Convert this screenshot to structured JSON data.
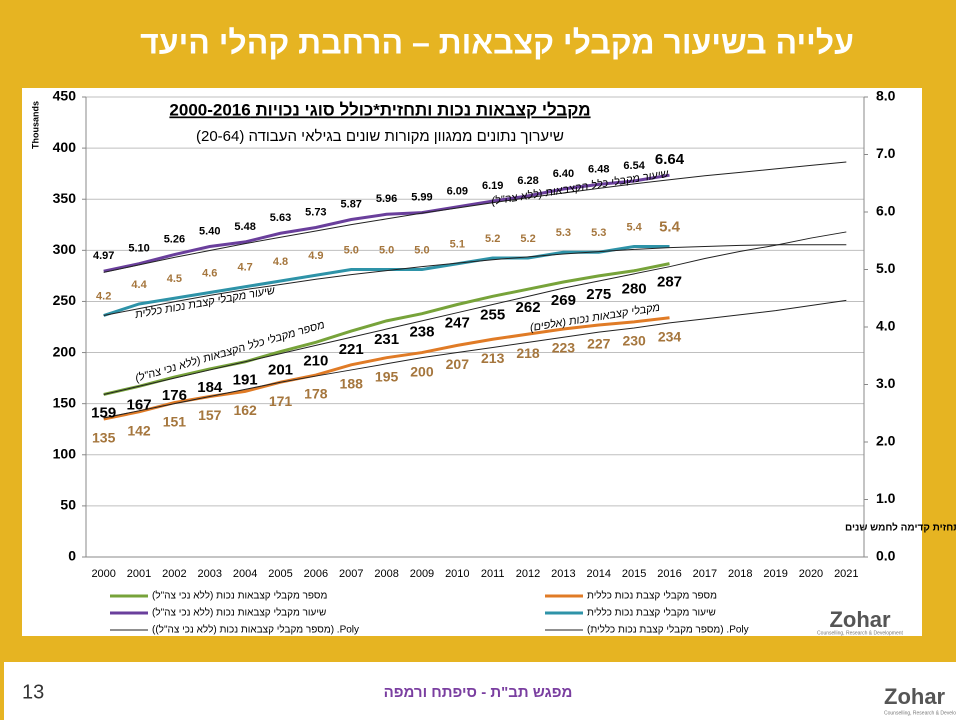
{
  "slide": {
    "title": "עלייה בשיעור מקבלי קצבאות – הרחבת קהלי היעד",
    "page_number": "13",
    "footer": "מפגש תב\"ת - סיפתח ורמפה",
    "logo": "Zohar",
    "logo_tagline": "Counselling, Research & Development"
  },
  "chart_data": {
    "type": "line",
    "title": "מקבלי קצבאות נכות ותחזית*כולל סוגי נכויות 2000-2016",
    "subtitle": "שיערוך נתונים ממגוון מקורות שונים בגילאי העבודה (20-64)",
    "y_axis_label": "Thousands",
    "footnote": "* קווי מגמה פולינאליים מדרגה שנייה; תחזית קדימה לחמש שנים",
    "annotations": [
      "שיעור מקבלי כלל הקצבאות (ללא צה\"ל)",
      "שיעור מקבלי קצבת נכות כללית",
      "מספר מקבלי כלל הקצבאות (ללא נכי צה\"ל)",
      "מקבלי קצבאות נכות (אלפים)"
    ],
    "categories": [
      "2000",
      "2001",
      "2002",
      "2003",
      "2004",
      "2005",
      "2006",
      "2007",
      "2008",
      "2009",
      "2010",
      "2011",
      "2012",
      "2013",
      "2014",
      "2015",
      "2016",
      "2017",
      "2018",
      "2019",
      "2020",
      "2021"
    ],
    "ylim": [
      0,
      450
    ],
    "yticks": [
      0,
      50,
      100,
      150,
      200,
      250,
      300,
      350,
      400,
      450
    ],
    "y2lim": [
      0,
      8
    ],
    "y2ticks": [
      {
        "value": 0,
        "label": "0.0"
      },
      {
        "value": 1,
        "label": "1.0"
      },
      {
        "value": 2,
        "label": "2.0"
      },
      {
        "value": 3,
        "label": "3.0"
      },
      {
        "value": 4,
        "label": "4.0"
      },
      {
        "value": 5,
        "label": "5.0"
      },
      {
        "value": 6,
        "label": "6.0"
      },
      {
        "value": 7,
        "label": "7.0"
      },
      {
        "value": 8,
        "label": "8.0"
      }
    ],
    "grid": true,
    "series": [
      {
        "name": "מספר מקבלי קצבאות נכות (ללא נכי צה\"ל)",
        "color": "#77a33a",
        "values": [
          159,
          167,
          176,
          184,
          191,
          201,
          210,
          221,
          231,
          238,
          247,
          255,
          262,
          269,
          275,
          280,
          287,
          null,
          null,
          null,
          null,
          null
        ]
      },
      {
        "name": "מספר מקבלי קצבת נכות כללית",
        "color": "#e07b26",
        "values": [
          135,
          142,
          151,
          157,
          162,
          171,
          178,
          188,
          195,
          200,
          207,
          213,
          218,
          223,
          227,
          230,
          234,
          null,
          null,
          null,
          null,
          null
        ]
      },
      {
        "name": "שיעור מקבלי קצבאות נכות (ללא נכי צה\"ל)",
        "color": "#6a3f9c",
        "axis": "y2",
        "values": [
          4.97,
          5.1,
          5.26,
          5.4,
          5.48,
          5.63,
          5.73,
          5.87,
          5.96,
          5.99,
          6.09,
          6.19,
          6.28,
          6.4,
          6.48,
          6.54,
          6.64,
          null,
          null,
          null,
          null,
          null
        ],
        "value_labels": [
          "4.97",
          "5.10",
          "5.26",
          "5.40",
          "5.48",
          "5.63",
          "5.73",
          "5.87",
          "5.96",
          "5.99",
          "6.09",
          "6.19",
          "6.28",
          "6.40",
          "6.48",
          "6.54",
          "6.64",
          null,
          null,
          null,
          null,
          null
        ]
      },
      {
        "name": "שיעור מקבלי קצבת נכות כללית",
        "color": "#2e93a8",
        "axis": "y2",
        "values": [
          4.2,
          4.4,
          4.5,
          4.6,
          4.7,
          4.8,
          4.9,
          5.0,
          5.0,
          5.0,
          5.1,
          5.2,
          5.2,
          5.3,
          5.3,
          5.4,
          5.4,
          null,
          null,
          null,
          null,
          null
        ],
        "value_labels": [
          "4.2",
          "4.4",
          "4.5",
          "4.6",
          "4.7",
          "4.8",
          "4.9",
          "5.0",
          "5.0",
          "5.0",
          "5.1",
          "5.2",
          "5.2",
          "5.3",
          "5.3",
          "5.4",
          "5.4",
          null,
          null,
          null,
          null,
          null
        ]
      }
    ],
    "trends": [
      {
        "name": "Poly. (מספר מקבלי קצבאות נכות (ללא נכי צה\"ל))",
        "color": "#222222",
        "values": [
          159,
          167,
          175,
          183,
          191,
          199,
          207,
          215,
          223,
          231,
          239,
          247,
          255,
          263,
          270,
          277,
          284,
          292,
          299,
          305,
          312,
          318
        ]
      },
      {
        "name": "Poly. (מספר מקבלי קצבת נכות כללית)",
        "color": "#222222",
        "values": [
          136,
          143,
          150,
          157,
          164,
          171,
          177,
          183,
          189,
          195,
          200,
          205,
          210,
          215,
          220,
          224,
          229,
          233,
          237,
          241,
          246,
          251
        ]
      },
      {
        "color": "#222222",
        "axis": "y2",
        "values": [
          4.95,
          5.08,
          5.21,
          5.33,
          5.45,
          5.56,
          5.67,
          5.78,
          5.88,
          5.98,
          6.07,
          6.16,
          6.25,
          6.33,
          6.41,
          6.49,
          6.56,
          6.63,
          6.69,
          6.75,
          6.81,
          6.87
        ]
      },
      {
        "color": "#222222",
        "axis": "y2",
        "values": [
          4.2,
          4.32,
          4.44,
          4.55,
          4.65,
          4.74,
          4.83,
          4.91,
          4.98,
          5.05,
          5.11,
          5.17,
          5.22,
          5.27,
          5.31,
          5.35,
          5.38,
          5.4,
          5.42,
          5.43,
          5.43,
          5.43
        ]
      }
    ]
  }
}
